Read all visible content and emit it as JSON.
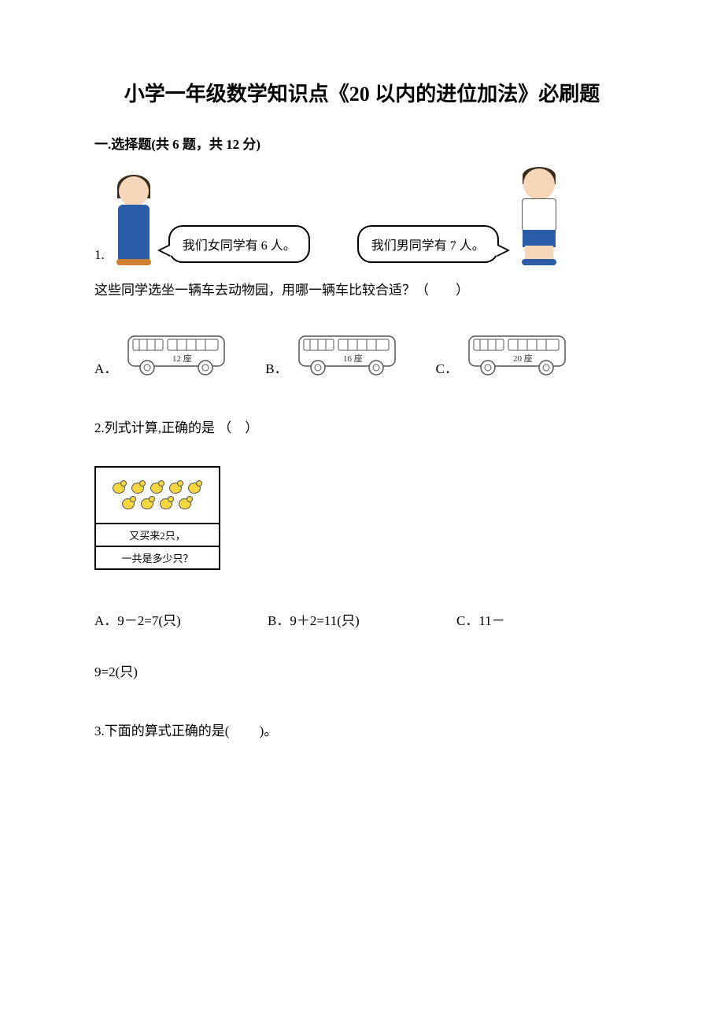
{
  "title": "小学一年级数学知识点《20 以内的进位加法》必刷题",
  "section1": {
    "header": "一.选择题(共 6 题，共 12 分)"
  },
  "q1": {
    "number": "1.",
    "girl_bubble": "我们女同学有 6 人。",
    "boy_bubble": "我们男同学有 7 人。",
    "prompt": "这些同学选坐一辆车去动物园，用哪一辆车比较合适？（　　）",
    "options": {
      "a_label": "A．",
      "b_label": "B．",
      "c_label": "C．",
      "bus_a_seats": "12 座",
      "bus_b_seats": "16 座",
      "bus_c_seats": "20 座"
    },
    "bus_style": {
      "stroke": "#555555",
      "fill": "#ffffff",
      "seat_font_size": 10
    },
    "figure_colors": {
      "skin": "#f5d6b8",
      "hair": "#3a2a1a",
      "blue": "#2a5ca8",
      "shoe_brown": "#d08030",
      "chick_yellow": "#f5d742"
    }
  },
  "q2": {
    "text": "2.列式计算,正确的是 （　）",
    "box_line1": "又买来2只，",
    "box_line2": "一共是多少只？",
    "chick_count": 9,
    "opt_a": "A．9－2=7(只)",
    "opt_b": "B．9＋2=11(只)",
    "opt_c": "C．11－",
    "trailing": "9=2(只)"
  },
  "q3": {
    "text": "3.下面的算式正确的是(　　   )。"
  }
}
